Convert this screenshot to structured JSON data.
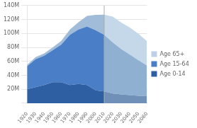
{
  "chart_data": {
    "type": "area",
    "stacked": true,
    "x": [
      1920,
      1930,
      1940,
      1950,
      1960,
      1970,
      1980,
      1990,
      2000,
      2010,
      2020,
      2030,
      2040,
      2050,
      2060
    ],
    "series": [
      {
        "name": "Age 0-14",
        "color": "#2e5fa3",
        "colors": [
          "#2e5fa3",
          "#2e5fa3",
          "#2e5fa3",
          "#2e5fa3",
          "#2e5fa3",
          "#2e5fa3",
          "#2e5fa3",
          "#2e5fa3",
          "#2e5fa3",
          "#2e5fa3",
          "#7090b8",
          "#7090b8",
          "#7090b8",
          "#7090b8",
          "#7090b8"
        ],
        "values": [
          20000000,
          23000000,
          26000000,
          30000000,
          30000000,
          26000000,
          27500000,
          26000000,
          18500000,
          17000000,
          14000000,
          12500000,
          11500000,
          10500000,
          10000000
        ]
      },
      {
        "name": "Age 15-64",
        "color": "#4a7ec7",
        "colors": [
          "#4a7ec7",
          "#4a7ec7",
          "#4a7ec7",
          "#4a7ec7",
          "#4a7ec7",
          "#4a7ec7",
          "#4a7ec7",
          "#4a7ec7",
          "#4a7ec7",
          "#4a7ec7",
          "#8fb0d0",
          "#8fb0d0",
          "#8fb0d0",
          "#8fb0d0",
          "#8fb0d0"
        ],
        "values": [
          33000000,
          40000000,
          42000000,
          46000000,
          54000000,
          72000000,
          78000000,
          84000000,
          86000000,
          81000000,
          73000000,
          65000000,
          58000000,
          51000000,
          44000000
        ]
      },
      {
        "name": "Age 65+",
        "color": "#bdd0e8",
        "colors": [
          "#a0bcd8",
          "#a0bcd8",
          "#a0bcd8",
          "#a0bcd8",
          "#a0bcd8",
          "#a0bcd8",
          "#a0bcd8",
          "#a0bcd8",
          "#a0bcd8",
          "#a0bcd8",
          "#c5d8ea",
          "#c5d8ea",
          "#c5d8ea",
          "#c5d8ea",
          "#c5d8ea"
        ],
        "values": [
          2000000,
          3000000,
          3500000,
          4000000,
          5500000,
          7500000,
          10500000,
          15000000,
          22000000,
          29000000,
          37000000,
          38000000,
          39000000,
          38000000,
          35000000
        ]
      }
    ],
    "vlines": [
      2010
    ],
    "xlim": [
      1920,
      2060
    ],
    "xticks": [
      1920,
      1930,
      1940,
      1950,
      1960,
      1970,
      1980,
      1990,
      2000,
      2010,
      2020,
      2030,
      2040,
      2050,
      2060
    ],
    "ylim": [
      0,
      140000000
    ],
    "yticks": [
      {
        "value": 0,
        "label": ""
      },
      {
        "value": 20000000,
        "label": "20M"
      },
      {
        "value": 40000000,
        "label": "40M"
      },
      {
        "value": 60000000,
        "label": "60M"
      },
      {
        "value": 80000000,
        "label": "80M"
      },
      {
        "value": 100000000,
        "label": "100M"
      },
      {
        "value": 120000000,
        "label": "120M"
      },
      {
        "value": 140000000,
        "label": "140M"
      }
    ],
    "grid": "y",
    "legend": "right"
  }
}
